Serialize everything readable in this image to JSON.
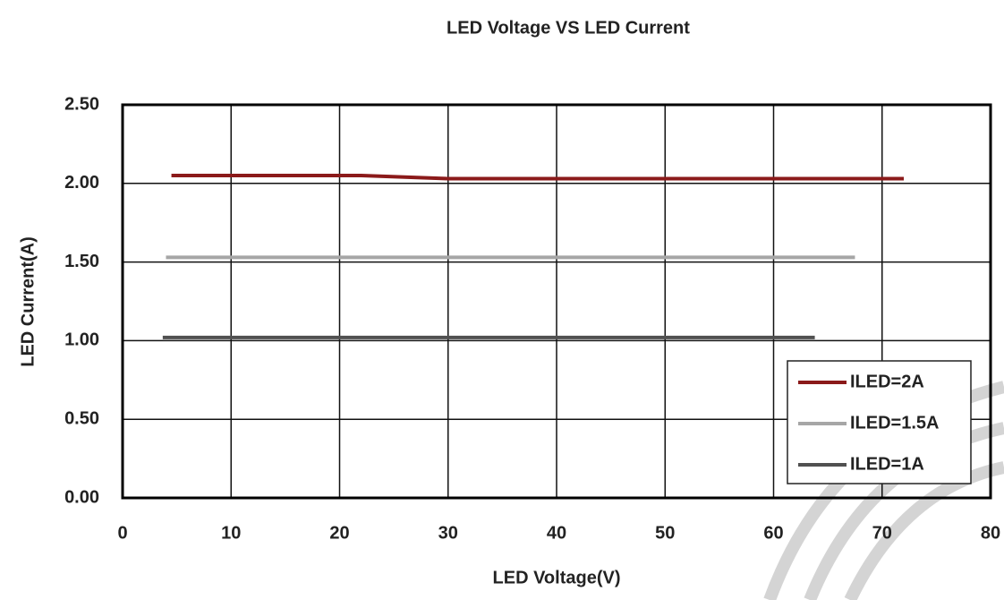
{
  "chart_data": {
    "type": "line",
    "title": "LED Voltage VS LED Current",
    "x_label": "LED Voltage(V)",
    "y_label": "LED Current(A)",
    "series": [
      {
        "name": "ILED=2A",
        "color": "#8b1a1a",
        "x": [
          4.5,
          22,
          30,
          72
        ],
        "values": [
          2.05,
          2.05,
          2.03,
          2.03
        ]
      },
      {
        "name": "ILED=1.5A",
        "color": "#a6a6a6",
        "x": [
          4,
          67.5
        ],
        "values": [
          1.53,
          1.53
        ]
      },
      {
        "name": "ILED=1A",
        "color": "#505050",
        "x": [
          3.7,
          63.8
        ],
        "values": [
          1.02,
          1.02
        ]
      }
    ],
    "xlim": [
      0,
      80
    ],
    "xticks": [
      0,
      10,
      20,
      30,
      40,
      50,
      60,
      70,
      80
    ],
    "ylim": [
      0,
      2.5
    ],
    "yticks": [
      {
        "value": 0,
        "label": "0.00"
      },
      {
        "value": 0.5,
        "label": "0.50"
      },
      {
        "value": 1,
        "label": "1.00"
      },
      {
        "value": 1.5,
        "label": "1.50"
      },
      {
        "value": 2,
        "label": "2.00"
      },
      {
        "value": 2.5,
        "label": "2.50"
      }
    ],
    "grid": true,
    "legend": "lower right"
  }
}
